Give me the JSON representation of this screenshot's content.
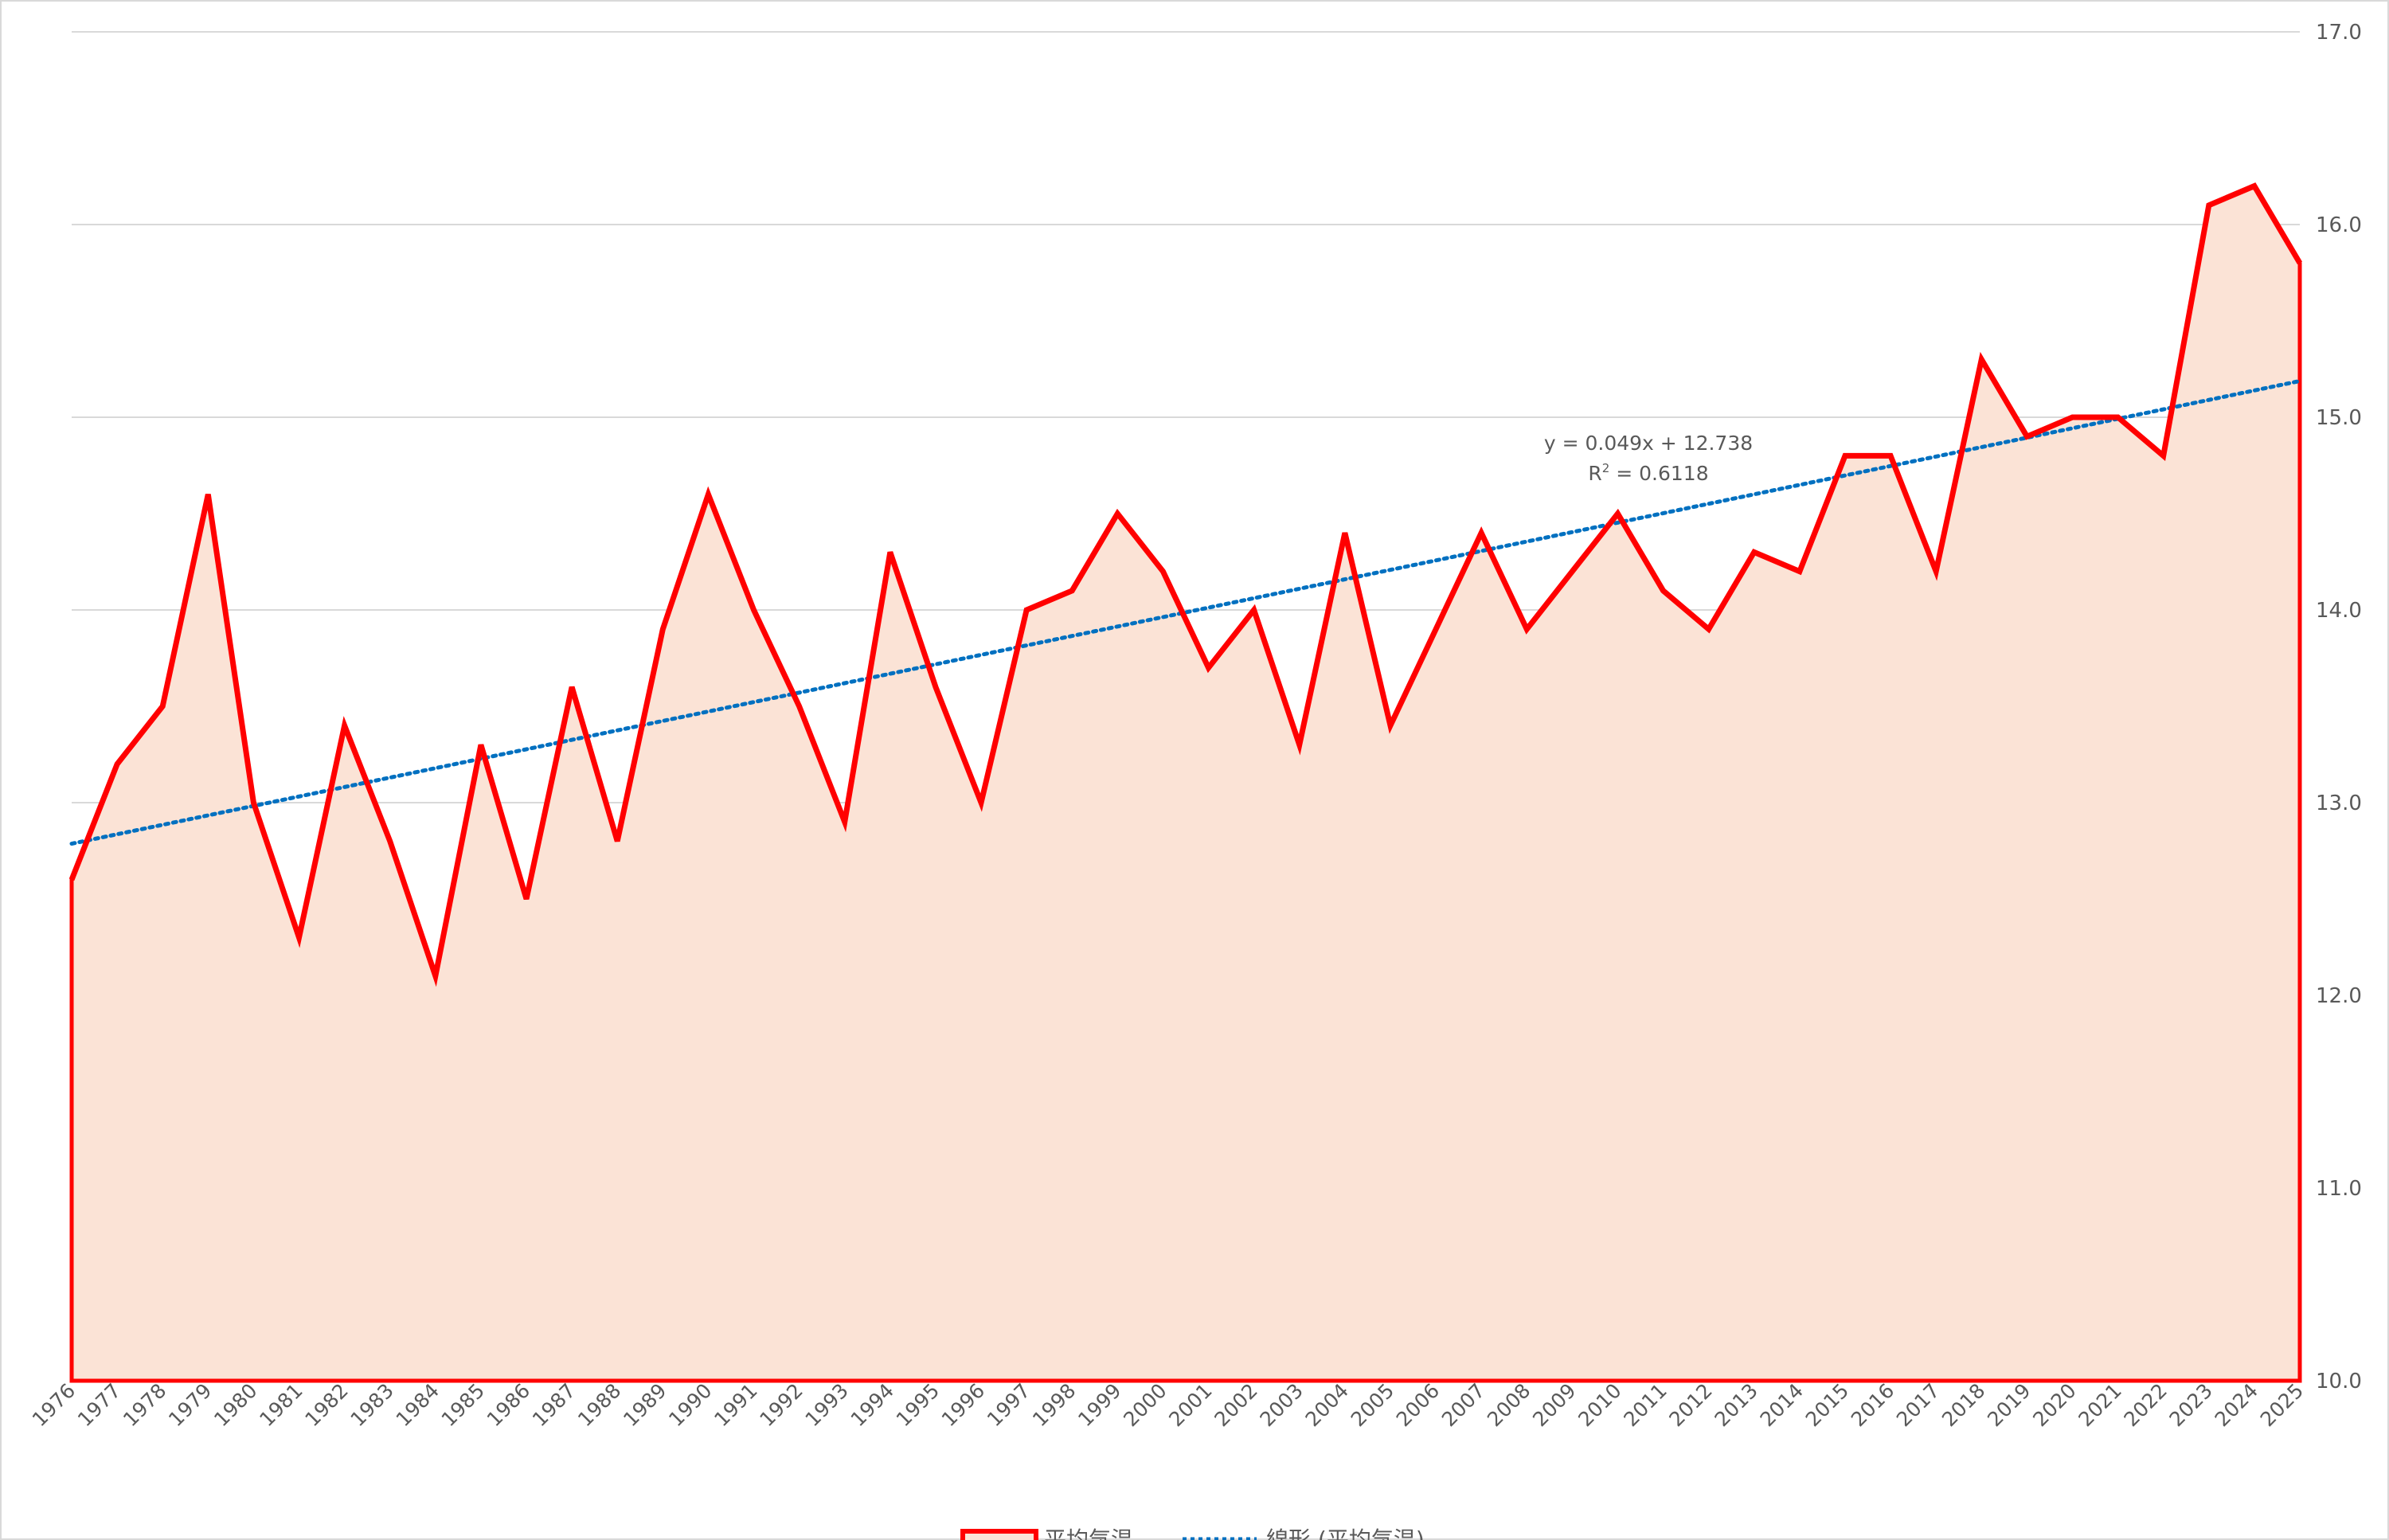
{
  "chart_data": {
    "type": "area",
    "categories": [
      "1976",
      "1977",
      "1978",
      "1979",
      "1980",
      "1981",
      "1982",
      "1983",
      "1984",
      "1985",
      "1986",
      "1987",
      "1988",
      "1989",
      "1990",
      "1991",
      "1992",
      "1993",
      "1994",
      "1995",
      "1996",
      "1997",
      "1998",
      "1999",
      "2000",
      "2001",
      "2002",
      "2003",
      "2004",
      "2005",
      "2006",
      "2007",
      "2008",
      "2009",
      "2010",
      "2011",
      "2012",
      "2013",
      "2014",
      "2015",
      "2016",
      "2017",
      "2018",
      "2019",
      "2020",
      "2021",
      "2022",
      "2023",
      "2024",
      "2025"
    ],
    "series": [
      {
        "name": "平均気温",
        "values": [
          12.6,
          13.2,
          13.5,
          14.6,
          13.0,
          12.3,
          13.4,
          12.8,
          12.1,
          13.3,
          12.5,
          13.6,
          12.8,
          13.9,
          14.6,
          14.0,
          13.5,
          12.9,
          14.3,
          13.6,
          13.0,
          14.0,
          14.1,
          14.5,
          14.2,
          13.7,
          14.0,
          13.3,
          14.4,
          13.4,
          13.9,
          14.4,
          13.9,
          14.2,
          14.5,
          14.1,
          13.9,
          14.3,
          14.2,
          14.8,
          14.8,
          14.2,
          15.3,
          14.9,
          15.0,
          15.0,
          14.8,
          16.1,
          16.2,
          15.8
        ],
        "color": "#ff0000",
        "fill": "#fbe3d6"
      }
    ],
    "trendline": {
      "name": "線形 (平均気温)",
      "type": "linear",
      "slope": 0.049,
      "intercept": 12.738,
      "equation": "y = 0.049x + 12.738",
      "r2_prefix": "R",
      "r2_sup": "2",
      "r2_value": " = 0.6118",
      "color": "#0070c0"
    },
    "y_axis": {
      "min": 10.0,
      "max": 17.0,
      "step": 1.0,
      "position": "right",
      "decimals": 1
    },
    "grid": true,
    "legend": "bottom"
  }
}
